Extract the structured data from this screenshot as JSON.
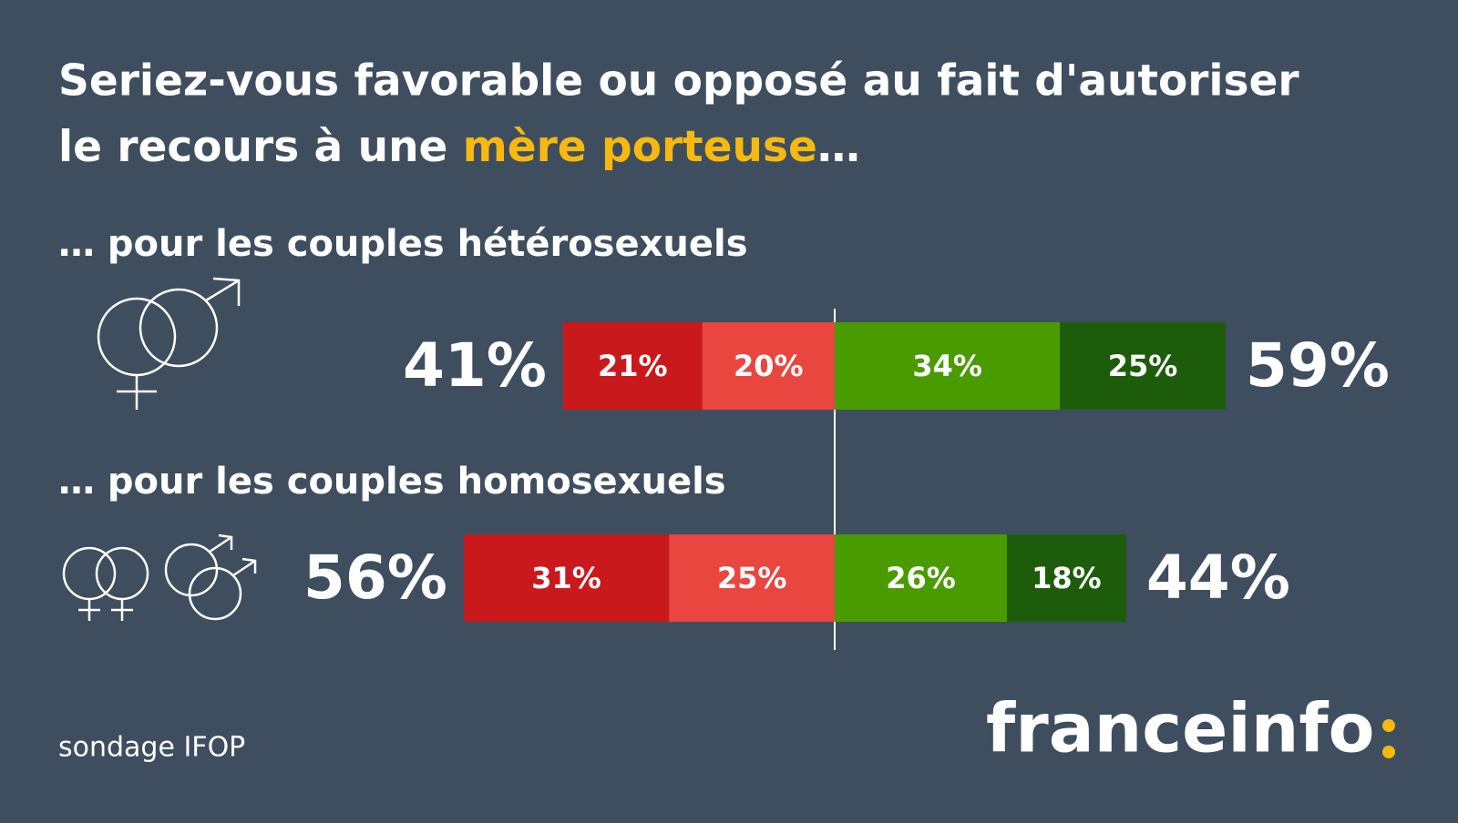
{
  "chart_data": {
    "type": "diverging-bar",
    "title": {
      "line1": "Seriez-vous favorable ou opposé au fait d'autoriser",
      "line2_start": "le recours à une",
      "highlight": "mère porteuse",
      "line2_end": "…",
      "highlight_color": "#f7b90f"
    },
    "categories": [
      "… pour les couples hétérosexuels",
      "… pour les couples homosexuels"
    ],
    "series": [
      {
        "color": "#c9191c",
        "values": [
          21,
          31
        ],
        "value_labels": [
          "21%",
          "31%"
        ]
      },
      {
        "color": "#e8463f",
        "values": [
          20,
          25
        ],
        "value_labels": [
          "20%",
          "25%"
        ]
      },
      {
        "color": "#499b00",
        "values": [
          34,
          26
        ],
        "value_labels": [
          "34%",
          "26%"
        ]
      },
      {
        "color": "#1d5c0b",
        "values": [
          25,
          18
        ],
        "value_labels": [
          "25%",
          "18%"
        ]
      }
    ],
    "opposed_totals": {
      "values": [
        41,
        56
      ],
      "value_labels": [
        "41%",
        "56%"
      ]
    },
    "favorable_totals": {
      "values": [
        59,
        44
      ],
      "value_labels": [
        "59%",
        "44%"
      ]
    },
    "source": "sondage IFOP",
    "logo": "franceinfo"
  }
}
